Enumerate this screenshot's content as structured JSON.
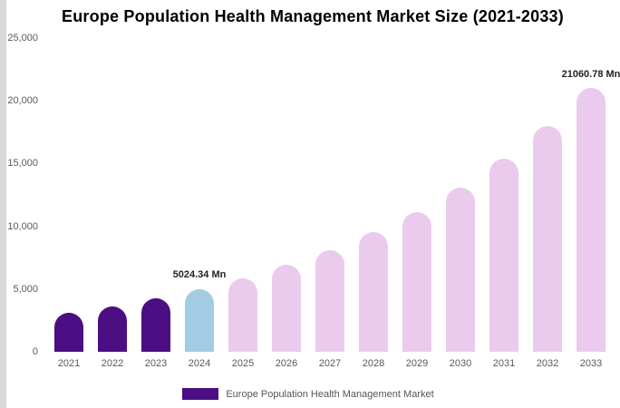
{
  "chart_data": {
    "type": "bar",
    "title": "Europe Population Health Management Market Size (2021-2033)",
    "categories": [
      "2021",
      "2022",
      "2023",
      "2024",
      "2025",
      "2026",
      "2027",
      "2028",
      "2029",
      "2030",
      "2031",
      "2032",
      "2033"
    ],
    "values": [
      3100,
      3650,
      4280,
      5024.34,
      5890,
      6910,
      8110,
      9510,
      11160,
      13090,
      15360,
      18010,
      21060.78
    ],
    "segments": [
      "past",
      "past",
      "past",
      "current",
      "forecast",
      "forecast",
      "forecast",
      "forecast",
      "forecast",
      "forecast",
      "forecast",
      "forecast",
      "forecast"
    ],
    "point_labels": [
      "",
      "",
      "",
      "5024.34 Mn",
      "",
      "",
      "",
      "",
      "",
      "",
      "",
      "",
      "21060.78 Mn"
    ],
    "colors": {
      "past": "#4B0E83",
      "current": "#A3CBE1",
      "forecast": "#EACAED"
    },
    "ylim": [
      0,
      25000
    ],
    "yticks": [
      "0",
      "5,000",
      "10,000",
      "15,000",
      "20,000",
      "25,000"
    ],
    "ytick_values": [
      0,
      5000,
      10000,
      15000,
      20000,
      25000
    ],
    "grid": false,
    "legend": [
      {
        "label": "Europe Population Health Management Market",
        "color": "#4B0E83"
      }
    ],
    "legend_position": "bottom"
  }
}
